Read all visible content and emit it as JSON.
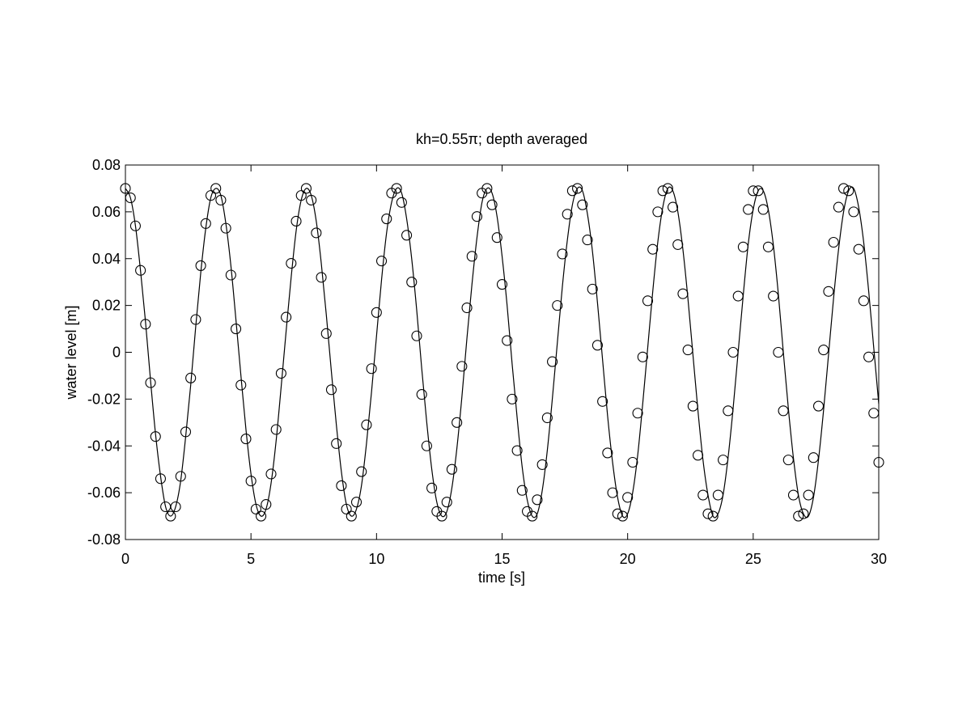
{
  "chart_data": {
    "type": "line",
    "title": "kh=0.55π; depth averaged",
    "xlabel": "time [s]",
    "ylabel": "water level [m]",
    "xlim": [
      0,
      30
    ],
    "xticks": [
      0,
      5,
      10,
      15,
      20,
      25,
      30
    ],
    "ylim": [
      -0.08,
      0.08
    ],
    "yticks": [
      -0.08,
      -0.06,
      -0.04,
      -0.02,
      0,
      0.02,
      0.04,
      0.06,
      0.08
    ],
    "grid": false,
    "x": [
      0,
      0.2,
      0.4,
      0.6,
      0.8,
      1,
      1.2,
      1.4,
      1.6,
      1.8,
      2,
      2.2,
      2.4,
      2.6,
      2.8,
      3,
      3.2,
      3.4,
      3.6,
      3.8,
      4,
      4.2,
      4.4,
      4.6,
      4.8,
      5,
      5.2,
      5.4,
      5.6,
      5.8,
      6,
      6.2,
      6.4,
      6.6,
      6.8,
      7,
      7.2,
      7.4,
      7.6,
      7.8,
      8,
      8.2,
      8.4,
      8.6,
      8.8,
      9,
      9.2,
      9.4,
      9.6,
      9.8,
      10,
      10.2,
      10.4,
      10.6,
      10.8,
      11,
      11.2,
      11.4,
      11.6,
      11.8,
      12,
      12.2,
      12.4,
      12.6,
      12.8,
      13,
      13.2,
      13.4,
      13.6,
      13.8,
      14,
      14.2,
      14.4,
      14.6,
      14.8,
      15,
      15.2,
      15.4,
      15.6,
      15.8,
      16,
      16.2,
      16.4,
      16.6,
      16.8,
      17,
      17.2,
      17.4,
      17.6,
      17.8,
      18,
      18.2,
      18.4,
      18.6,
      18.8,
      19,
      19.2,
      19.4,
      19.6,
      19.8,
      20,
      20.2,
      20.4,
      20.6,
      20.8,
      21,
      21.2,
      21.4,
      21.6,
      21.8,
      22,
      22.2,
      22.4,
      22.6,
      22.8,
      23,
      23.2,
      23.4,
      23.6,
      23.8,
      24,
      24.2,
      24.4,
      24.6,
      24.8,
      25,
      25.2,
      25.4,
      25.6,
      25.8,
      26,
      26.2,
      26.4,
      26.6,
      26.8,
      27,
      27.2,
      27.4,
      27.6,
      27.8,
      28,
      28.2,
      28.4,
      28.6,
      28.8,
      29,
      29.2,
      29.4,
      29.6,
      29.8,
      30
    ],
    "series": [
      {
        "color": "#000000",
        "linestyle": "-",
        "marker": "none",
        "values": [
          0.07,
          0.066,
          0.054,
          0.035,
          0.013,
          -0.012,
          -0.035,
          -0.053,
          -0.066,
          -0.07,
          -0.066,
          -0.055,
          -0.036,
          -0.014,
          0.011,
          0.034,
          0.053,
          0.066,
          0.07,
          0.067,
          0.055,
          0.037,
          0.014,
          -0.01,
          -0.033,
          -0.052,
          -0.065,
          -0.07,
          -0.067,
          -0.056,
          -0.038,
          -0.015,
          0.009,
          0.032,
          0.052,
          0.065,
          0.07,
          0.067,
          0.056,
          0.038,
          0.016,
          -0.008,
          -0.031,
          -0.051,
          -0.065,
          -0.07,
          -0.067,
          -0.057,
          -0.039,
          -0.017,
          0.007,
          0.031,
          0.051,
          0.064,
          0.07,
          0.068,
          0.057,
          0.04,
          0.018,
          -0.007,
          -0.03,
          -0.05,
          -0.064,
          -0.07,
          -0.068,
          -0.058,
          -0.041,
          -0.019,
          0.006,
          0.029,
          0.049,
          0.064,
          0.07,
          0.068,
          0.058,
          0.041,
          0.02,
          -0.005,
          -0.028,
          -0.049,
          -0.063,
          -0.07,
          -0.069,
          -0.059,
          -0.042,
          -0.02,
          0.004,
          0.028,
          0.048,
          0.063,
          0.07,
          0.069,
          0.059,
          0.043,
          0.021,
          -0.003,
          -0.027,
          -0.047,
          -0.062,
          -0.07,
          -0.069,
          -0.06,
          -0.044,
          -0.022,
          0.002,
          0.026,
          0.047,
          0.062,
          0.07,
          0.069,
          0.06,
          0.044,
          0.023,
          -0.001,
          -0.025,
          -0.046,
          -0.061,
          -0.07,
          -0.069,
          -0.061,
          -0.045,
          -0.024,
          0,
          0.024,
          0.046,
          0.061,
          0.069,
          0.069,
          0.061,
          0.046,
          0.025,
          0,
          -0.024,
          -0.045,
          -0.061,
          -0.069,
          -0.07,
          -0.062,
          -0.046,
          -0.025,
          -0.001,
          0.023,
          0.044,
          0.06,
          0.069,
          0.07,
          0.062,
          0.047,
          0.026,
          0.002,
          -0.022
        ]
      },
      {
        "color": "#000000",
        "linestyle": "none",
        "marker": "circle",
        "values": [
          0.07,
          0.066,
          0.054,
          0.035,
          0.012,
          -0.013,
          -0.036,
          -0.054,
          -0.066,
          -0.07,
          -0.066,
          -0.053,
          -0.034,
          -0.011,
          0.014,
          0.037,
          0.055,
          0.067,
          0.07,
          0.065,
          0.053,
          0.033,
          0.01,
          -0.014,
          -0.037,
          -0.055,
          -0.067,
          -0.07,
          -0.065,
          -0.052,
          -0.033,
          -0.009,
          0.015,
          0.038,
          0.056,
          0.067,
          0.07,
          0.065,
          0.051,
          0.032,
          0.008,
          -0.016,
          -0.039,
          -0.057,
          -0.067,
          -0.07,
          -0.064,
          -0.051,
          -0.031,
          -0.007,
          0.017,
          0.039,
          0.057,
          0.068,
          0.07,
          0.064,
          0.05,
          0.03,
          0.007,
          -0.018,
          -0.04,
          -0.058,
          -0.068,
          -0.07,
          -0.064,
          -0.05,
          -0.03,
          -0.006,
          0.019,
          0.041,
          0.058,
          0.068,
          0.07,
          0.063,
          0.049,
          0.029,
          0.005,
          -0.02,
          -0.042,
          -0.059,
          -0.068,
          -0.07,
          -0.063,
          -0.048,
          -0.028,
          -0.004,
          0.02,
          0.042,
          0.059,
          0.069,
          0.07,
          0.063,
          0.048,
          0.027,
          0.003,
          -0.021,
          -0.043,
          -0.06,
          -0.069,
          -0.07,
          -0.062,
          -0.047,
          -0.026,
          -0.002,
          0.022,
          0.044,
          0.06,
          0.069,
          0.07,
          0.062,
          0.046,
          0.025,
          0.001,
          -0.023,
          -0.044,
          -0.061,
          -0.069,
          -0.07,
          -0.061,
          -0.046,
          -0.025,
          0,
          0.024,
          0.045,
          0.061,
          0.069,
          0.069,
          0.061,
          0.045,
          0.024,
          0,
          -0.025,
          -0.046,
          -0.061,
          -0.07,
          -0.069,
          -0.061,
          -0.045,
          -0.023,
          0.001,
          0.026,
          0.047,
          0.062,
          0.07,
          0.069,
          0.06,
          0.044,
          0.022,
          -0.002,
          -0.026,
          -0.047
        ]
      }
    ]
  }
}
